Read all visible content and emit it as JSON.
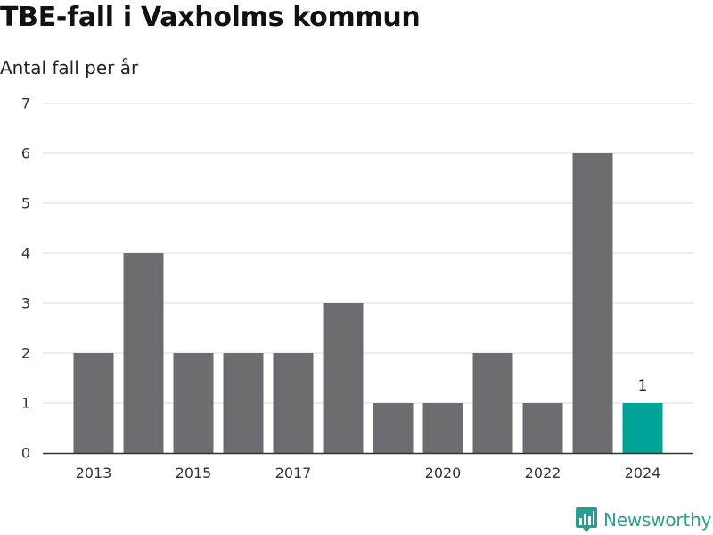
{
  "title": "TBE-fall i Vaxholms kommun",
  "subtitle": "Antal fall per år",
  "brand": {
    "name": "Newsworthy",
    "icon": "bar-chart-logo-icon"
  },
  "colors": {
    "bar_default": "#6d6c71",
    "bar_highlight": "#00a398",
    "gridline": "#dcdcdc",
    "axis": "#333333",
    "brand": "#2a9d8f"
  },
  "chart_data": {
    "type": "bar",
    "title": "TBE-fall i Vaxholms kommun",
    "subtitle": "Antal fall per år",
    "xlabel": "",
    "ylabel": "",
    "categories": [
      "2013",
      "2014",
      "2015",
      "2016",
      "2017",
      "2018",
      "2019",
      "2020",
      "2021",
      "2022",
      "2023",
      "2024"
    ],
    "values": [
      2,
      4,
      2,
      2,
      2,
      3,
      1,
      1,
      2,
      1,
      6,
      1
    ],
    "x_tick_labels": [
      "2013",
      "2015",
      "2017",
      "2020",
      "2022",
      "2024"
    ],
    "y_ticks": [
      0,
      1,
      2,
      3,
      4,
      5,
      6,
      7
    ],
    "ylim": [
      0,
      7
    ],
    "grid": true,
    "legend": "none",
    "highlight": {
      "category": "2024",
      "label": "1"
    }
  }
}
